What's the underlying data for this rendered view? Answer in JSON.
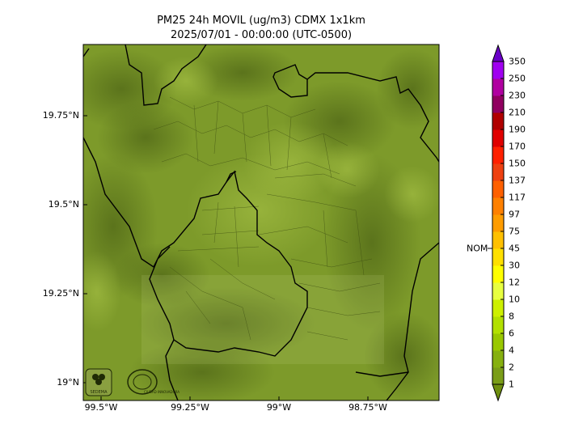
{
  "title_line1": "PM25 24h MOVIL (ug/m3) CDMX 1x1km",
  "title_line2": "2025/07/01 - 00:00:00 (UTC-0500)",
  "lat_ticks": [
    {
      "label": "19.75°N",
      "value": 19.75
    },
    {
      "label": "19.5°N",
      "value": 19.5
    },
    {
      "label": "19.25°N",
      "value": 19.25
    },
    {
      "label": "19°N",
      "value": 19.0
    }
  ],
  "lon_ticks": [
    {
      "label": "99.5°W",
      "value": -99.5
    },
    {
      "label": "99.25°W",
      "value": -99.25
    },
    {
      "label": "99°W",
      "value": -99.0
    },
    {
      "label": "98.75°W",
      "value": -98.75
    }
  ],
  "map_extent": {
    "lon_min": -99.55,
    "lon_max": -98.55,
    "lat_min": 18.95,
    "lat_max": 19.95
  },
  "colorbar": {
    "labels": [
      "1",
      "2",
      "4",
      "6",
      "8",
      "10",
      "12",
      "30",
      "45",
      "75",
      "97",
      "117",
      "137",
      "150",
      "170",
      "190",
      "210",
      "230",
      "250",
      "350"
    ],
    "colors": [
      "#7a9d18",
      "#86b010",
      "#99c800",
      "#b2e000",
      "#cdf000",
      "#e8ff40",
      "#ffff00",
      "#ffe000",
      "#ffc000",
      "#ff9c00",
      "#ff8000",
      "#ff6000",
      "#ee4010",
      "#ff2000",
      "#e00000",
      "#b00000",
      "#900060",
      "#b000a0",
      "#a000f0",
      "#7a00d8"
    ],
    "below_color": "#6f8f10",
    "above_color": "#6a00c8",
    "nom_label": "NOM",
    "nom_level": "45"
  },
  "map_colors": {
    "base": "#7d9a2a",
    "dark": "#566e1a",
    "light": "#a6c24a"
  },
  "logos": {
    "left": "SEDEMA",
    "right": "CIUDAD INNOVADORA"
  }
}
